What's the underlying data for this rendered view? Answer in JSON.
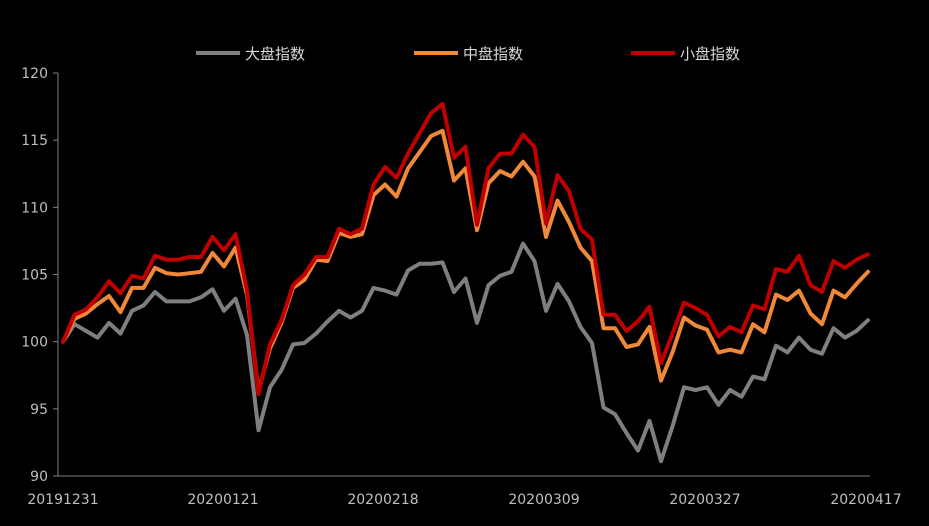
{
  "chart_data": {
    "type": "line",
    "ylim": [
      90,
      120
    ],
    "yticks": [
      90,
      95,
      100,
      105,
      110,
      115,
      120
    ],
    "x_tick_labels": [
      "20191231",
      "20200121",
      "20200218",
      "20200309",
      "20200327",
      "20200417"
    ],
    "legend_position": "top",
    "grid": false,
    "series": [
      {
        "name": "大盘指数",
        "color": "#7f7f7f",
        "values": [
          100.0,
          101.3,
          100.8,
          100.3,
          101.4,
          100.6,
          102.3,
          102.7,
          103.7,
          103.0,
          103.0,
          103.0,
          103.3,
          103.9,
          102.3,
          103.2,
          100.5,
          93.4,
          96.6,
          97.9,
          99.8,
          99.9,
          100.6,
          101.5,
          102.3,
          101.8,
          102.3,
          104.0,
          103.8,
          103.5,
          105.3,
          105.8,
          105.8,
          105.9,
          103.7,
          104.7,
          101.4,
          104.2,
          104.9,
          105.2,
          107.3,
          106.0,
          102.3,
          104.3,
          103.0,
          101.1,
          99.9,
          95.1,
          94.6,
          93.2,
          91.9,
          94.1,
          91.1,
          93.7,
          96.6,
          96.4,
          96.6,
          95.3,
          96.4,
          95.9,
          97.4,
          97.2,
          99.7,
          99.2,
          100.3,
          99.4,
          99.1,
          101.0,
          100.3,
          100.8,
          101.6
        ]
      },
      {
        "name": "中盘指数",
        "color": "#f0883a",
        "values": [
          100.0,
          101.7,
          102.1,
          102.8,
          103.4,
          102.2,
          104.0,
          104.0,
          105.5,
          105.1,
          105.0,
          105.1,
          105.2,
          106.6,
          105.6,
          107.0,
          103.5,
          96.3,
          99.5,
          101.4,
          104.0,
          104.6,
          106.1,
          106.0,
          108.1,
          107.8,
          108.0,
          110.9,
          111.7,
          110.8,
          112.9,
          114.1,
          115.3,
          115.7,
          112.0,
          112.9,
          108.3,
          111.8,
          112.7,
          112.3,
          113.4,
          112.3,
          107.8,
          110.5,
          108.9,
          107.0,
          106.0,
          101.0,
          101.0,
          99.6,
          99.8,
          101.1,
          97.1,
          99.2,
          101.8,
          101.2,
          100.9,
          99.2,
          99.4,
          99.2,
          101.3,
          100.7,
          103.5,
          103.1,
          103.8,
          102.1,
          101.3,
          103.8,
          103.3,
          104.3,
          105.2
        ]
      },
      {
        "name": "小盘指数",
        "color": "#c00000",
        "values": [
          100.0,
          102.0,
          102.4,
          103.3,
          104.5,
          103.6,
          104.9,
          104.7,
          106.4,
          106.1,
          106.1,
          106.3,
          106.3,
          107.8,
          106.8,
          108.0,
          103.8,
          96.1,
          99.8,
          101.6,
          104.2,
          105.0,
          106.3,
          106.3,
          108.4,
          108.0,
          108.4,
          111.7,
          113.0,
          112.2,
          114.0,
          115.5,
          117.0,
          117.7,
          113.7,
          114.5,
          108.7,
          112.9,
          114.0,
          114.0,
          115.4,
          114.5,
          108.8,
          112.4,
          111.2,
          108.4,
          107.6,
          102.0,
          102.0,
          100.8,
          101.5,
          102.6,
          98.4,
          100.6,
          102.9,
          102.5,
          102.0,
          100.4,
          101.1,
          100.7,
          102.7,
          102.4,
          105.4,
          105.2,
          106.4,
          104.2,
          103.7,
          106.0,
          105.5,
          106.1,
          106.5
        ]
      }
    ]
  }
}
